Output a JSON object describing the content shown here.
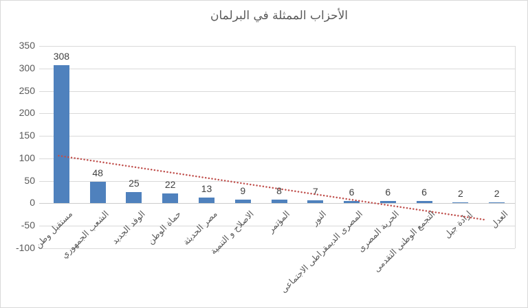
{
  "chart_data": {
    "type": "bar",
    "title": "الأحزاب الممثلة في البرلمان",
    "categories": [
      "مستقبل وطن",
      "الشعب الجمهوري",
      "الوفد الجديد",
      "حماة الوطن",
      "مصر الحديثة",
      "الاصلاح و التنمية",
      "المؤتمر",
      "النور",
      "المصرى الديمقراطى الاجتماعى",
      "الحرية المصرى",
      "التجمع الوطنى التقدمى",
      "إرادة جيل",
      "العدل"
    ],
    "values": [
      308,
      48,
      25,
      22,
      13,
      9,
      8,
      7,
      6,
      6,
      6,
      2,
      2
    ],
    "y_ticks": [
      350,
      300,
      250,
      200,
      150,
      100,
      50,
      0,
      -50,
      -100
    ],
    "ylim": [
      -100,
      350
    ],
    "grid": true,
    "legend": "none",
    "data_labels": true,
    "bar_color": "#4f81bd",
    "gridline_color": "#d9d9d9",
    "axis_text_color": "#595959",
    "data_label_color": "#404040",
    "title_color": "#595959",
    "trendline": {
      "type": "linear",
      "line_style": "dotted",
      "color": "#c0504d",
      "start_value": 106,
      "end_value": -37
    }
  }
}
